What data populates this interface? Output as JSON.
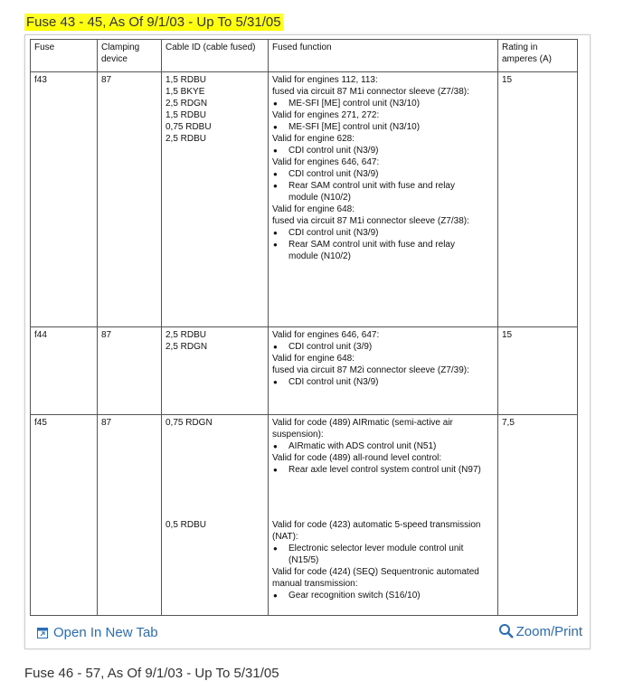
{
  "header": {
    "title": "Fuse 43 - 45, As Of 9/1/03 - Up To 5/31/05"
  },
  "table": {
    "columns": [
      "Fuse",
      "Clamping device",
      "Cable ID (cable fused)",
      "Fused function",
      "Rating in amperes (A)"
    ],
    "rows": [
      {
        "fuse": "f43",
        "clamping": "87",
        "rating": "15",
        "groups": [
          {
            "cables": [
              "1,5 RDBU",
              "1,5 BKYE",
              "2,5 RDGN",
              "1,5 RDBU",
              "0,75 RDBU",
              "2,5 RDBU"
            ],
            "function": [
              {
                "text": "Valid for engines 112, 113:",
                "bullet": false
              },
              {
                "text": "fused via circuit 87 M1i connector sleeve (Z7/38):",
                "bullet": false
              },
              {
                "text": "ME-SFI [ME] control unit (N3/10)",
                "bullet": true
              },
              {
                "text": "Valid for engines 271, 272:",
                "bullet": false
              },
              {
                "text": "ME-SFI [ME] control unit (N3/10)",
                "bullet": true
              },
              {
                "text": "Valid for engine 628:",
                "bullet": false
              },
              {
                "text": "CDI control unit (N3/9)",
                "bullet": true
              },
              {
                "text": "Valid for engines 646, 647:",
                "bullet": false
              },
              {
                "text": "CDI control unit (N3/9)",
                "bullet": true
              },
              {
                "text": "Rear SAM control unit with fuse and relay module (N10/2)",
                "bullet": true
              },
              {
                "text": "Valid for engine 648:",
                "bullet": false
              },
              {
                "text": "fused via circuit 87 M1i connector sleeve (Z7/38):",
                "bullet": false
              },
              {
                "text": "CDI control unit (N3/9)",
                "bullet": true
              },
              {
                "text": "Rear SAM control unit with fuse and relay module (N10/2)",
                "bullet": true
              }
            ]
          }
        ]
      },
      {
        "fuse": "f44",
        "clamping": "87",
        "rating": "15",
        "groups": [
          {
            "cables": [
              "2,5 RDBU",
              "2,5 RDGN"
            ],
            "function": [
              {
                "text": "Valid for engines 646, 647:",
                "bullet": false
              },
              {
                "text": "CDI control unit (3/9)",
                "bullet": true
              },
              {
                "text": "Valid for engine 648:",
                "bullet": false
              },
              {
                "text": "fused via circuit 87 M2i connector sleeve (Z7/39):",
                "bullet": false
              },
              {
                "text": "CDI control unit (N3/9)",
                "bullet": true
              }
            ]
          }
        ]
      },
      {
        "fuse": "f45",
        "clamping": "87",
        "rating": "7,5",
        "groups": [
          {
            "cables": [
              "0,75 RDGN"
            ],
            "function": [
              {
                "text": "Valid for code (489) AIRmatic (semi-active air suspension):",
                "bullet": false
              },
              {
                "text": "AIRmatic with ADS control unit (N51)",
                "bullet": true
              },
              {
                "text": "Valid for code (489) all-round level control:",
                "bullet": false
              },
              {
                "text": "Rear axle level control system control unit (N97)",
                "bullet": true
              }
            ]
          },
          {
            "cables": [
              "0,5 RDBU"
            ],
            "function": [
              {
                "text": "Valid for code (423) automatic 5-speed transmission (NAT):",
                "bullet": false
              },
              {
                "text": "Electronic selector lever module control unit (N15/5)",
                "bullet": true
              },
              {
                "text": "Valid for code (424) (SEQ) Sequentronic automated manual transmission:",
                "bullet": false
              },
              {
                "text": "Gear recognition switch (S16/10)",
                "bullet": true
              }
            ]
          }
        ]
      }
    ]
  },
  "footer": {
    "open": "Open In New Tab",
    "zoom": "Zoom/Print"
  },
  "next_title": "Fuse 46 - 57, As Of 9/1/03 - Up To 5/31/05"
}
